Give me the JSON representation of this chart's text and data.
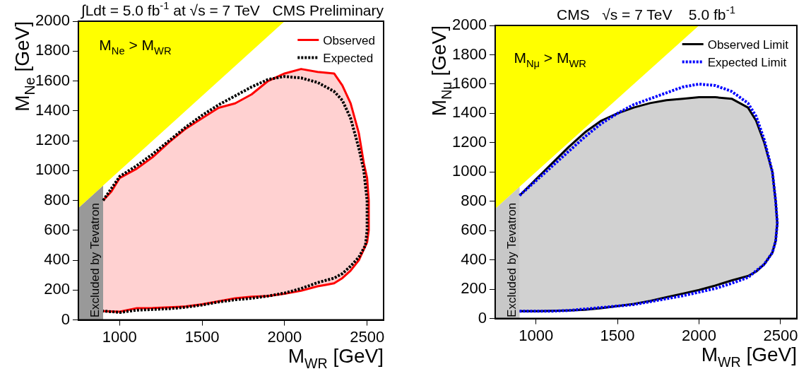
{
  "chart_data": [
    {
      "type": "line",
      "title": "∫Ldt = 5.0 fb$^{-1}$ at √s = 7 TeV",
      "xlabel": "M$_{WR}$ [GeV]",
      "ylabel": "M$_{Ne}$ [GeV]",
      "annotations": [
        "CMS Preliminary",
        "M$_{Ne}$ > M$_{WR}$",
        "Excluded by Tevatron"
      ],
      "xlim": [
        750,
        2600
      ],
      "ylim": [
        0,
        2000
      ],
      "xticks": [
        1000,
        1500,
        2000,
        2500
      ],
      "yticks": [
        0,
        200,
        400,
        600,
        800,
        1000,
        1200,
        1400,
        1600,
        1800,
        2000
      ],
      "legend": "top right",
      "marker": "none",
      "series": [
        {
          "type": "area",
          "color": "#ffff00",
          "x": [
            750,
            750,
            2000
          ],
          "values": [
            750,
            2000,
            2000
          ]
        },
        {
          "type": "area",
          "color": "#999999",
          "x": [
            750,
            750,
            900,
            900
          ],
          "values": [
            0,
            750,
            900,
            0
          ]
        },
        {
          "name": "Observed",
          "color": "#ff0000",
          "line_style": "solid",
          "x": [
            900,
            950,
            1000,
            1100,
            1200,
            1300,
            1400,
            1500,
            1600,
            1700,
            1800,
            1900,
            2000,
            2100,
            2200,
            2300,
            2350,
            2400,
            2450,
            2480,
            2500,
            2510,
            2510,
            2500,
            2450,
            2400,
            2350,
            2300,
            2250,
            2200,
            2100,
            2000,
            1900,
            1800,
            1700,
            1600,
            1500,
            1400,
            1300,
            1200,
            1100,
            1000,
            900
          ],
          "values": [
            800,
            860,
            950,
            1010,
            1090,
            1190,
            1280,
            1350,
            1420,
            1450,
            1510,
            1600,
            1650,
            1680,
            1660,
            1650,
            1570,
            1450,
            1250,
            1050,
            950,
            800,
            600,
            520,
            400,
            330,
            280,
            245,
            235,
            225,
            195,
            175,
            160,
            155,
            145,
            125,
            105,
            90,
            85,
            80,
            78,
            55,
            58
          ]
        },
        {
          "name": "Expected",
          "color": "#000000",
          "line_style": "dotted",
          "x": [
            900,
            1000,
            1100,
            1200,
            1300,
            1400,
            1500,
            1600,
            1700,
            1800,
            1900,
            2000,
            2100,
            2200,
            2300,
            2350,
            2400,
            2450,
            2480,
            2500,
            2500,
            2490,
            2450,
            2400,
            2350,
            2300,
            2200,
            2100,
            2000,
            1900,
            1800,
            1700,
            1600,
            1500,
            1400,
            1300,
            1200,
            1100,
            1000,
            900
          ],
          "values": [
            800,
            960,
            1030,
            1110,
            1200,
            1290,
            1370,
            1440,
            1500,
            1560,
            1610,
            1630,
            1620,
            1590,
            1530,
            1470,
            1350,
            1150,
            1000,
            800,
            600,
            500,
            420,
            360,
            310,
            280,
            250,
            210,
            180,
            160,
            145,
            135,
            120,
            100,
            85,
            75,
            70,
            65,
            50,
            60
          ]
        }
      ]
    },
    {
      "type": "line",
      "title": "CMS   √s = 7 TeV    5.0 fb$^{-1}$",
      "xlabel": "M$_{WR}$ [GeV]",
      "ylabel": "M$_{Nμ}$ [GeV]",
      "annotations": [
        "M$_{Nμ}$ > M$_{WR}$",
        "Excluded by Tevatron"
      ],
      "xlim": [
        750,
        2600
      ],
      "ylim": [
        0,
        2000
      ],
      "xticks": [
        1000,
        1500,
        2000,
        2500
      ],
      "yticks": [
        0,
        200,
        400,
        600,
        800,
        1000,
        1200,
        1400,
        1600,
        1800,
        2000
      ],
      "legend": "top right",
      "marker": "none",
      "series": [
        {
          "type": "area",
          "color": "#ffff00",
          "x": [
            750,
            750,
            2000
          ],
          "values": [
            750,
            2000,
            2000
          ]
        },
        {
          "type": "area",
          "color": "#c8c8c8",
          "x": [
            750,
            750,
            900,
            900
          ],
          "values": [
            0,
            750,
            900,
            0
          ]
        },
        {
          "name": "Observed Limit",
          "color": "#000000",
          "line_style": "solid",
          "x": [
            900,
            1000,
            1100,
            1200,
            1300,
            1400,
            1500,
            1600,
            1700,
            1800,
            1900,
            2000,
            2100,
            2200,
            2300,
            2350,
            2400,
            2450,
            2470,
            2480,
            2470,
            2450,
            2400,
            2350,
            2300,
            2200,
            2100,
            2000,
            1900,
            1800,
            1700,
            1600,
            1500,
            1400,
            1300,
            1200,
            1100,
            1000,
            900
          ],
          "values": [
            840,
            950,
            1060,
            1170,
            1270,
            1350,
            1400,
            1440,
            1470,
            1490,
            1500,
            1510,
            1510,
            1500,
            1440,
            1350,
            1200,
            1000,
            800,
            650,
            530,
            450,
            370,
            320,
            290,
            260,
            225,
            195,
            170,
            145,
            120,
            100,
            85,
            70,
            60,
            55,
            52,
            50,
            50
          ]
        },
        {
          "name": "Expected Limit",
          "color": "#0000ff",
          "line_style": "dotted",
          "x": [
            900,
            1000,
            1100,
            1200,
            1300,
            1400,
            1500,
            1600,
            1700,
            1800,
            1900,
            2000,
            2100,
            2200,
            2300,
            2350,
            2400,
            2450,
            2470,
            2480,
            2470,
            2450,
            2400,
            2300,
            2200,
            2100,
            2000,
            1900,
            1800,
            1700,
            1600,
            1500,
            1400,
            1300,
            1200,
            1100,
            1000,
            900
          ],
          "values": [
            840,
            940,
            1040,
            1140,
            1240,
            1330,
            1400,
            1460,
            1500,
            1540,
            1580,
            1600,
            1590,
            1550,
            1470,
            1380,
            1220,
            1000,
            800,
            650,
            530,
            450,
            370,
            280,
            240,
            205,
            180,
            155,
            135,
            115,
            95,
            85,
            75,
            65,
            55,
            50,
            50,
            50
          ]
        }
      ]
    }
  ]
}
